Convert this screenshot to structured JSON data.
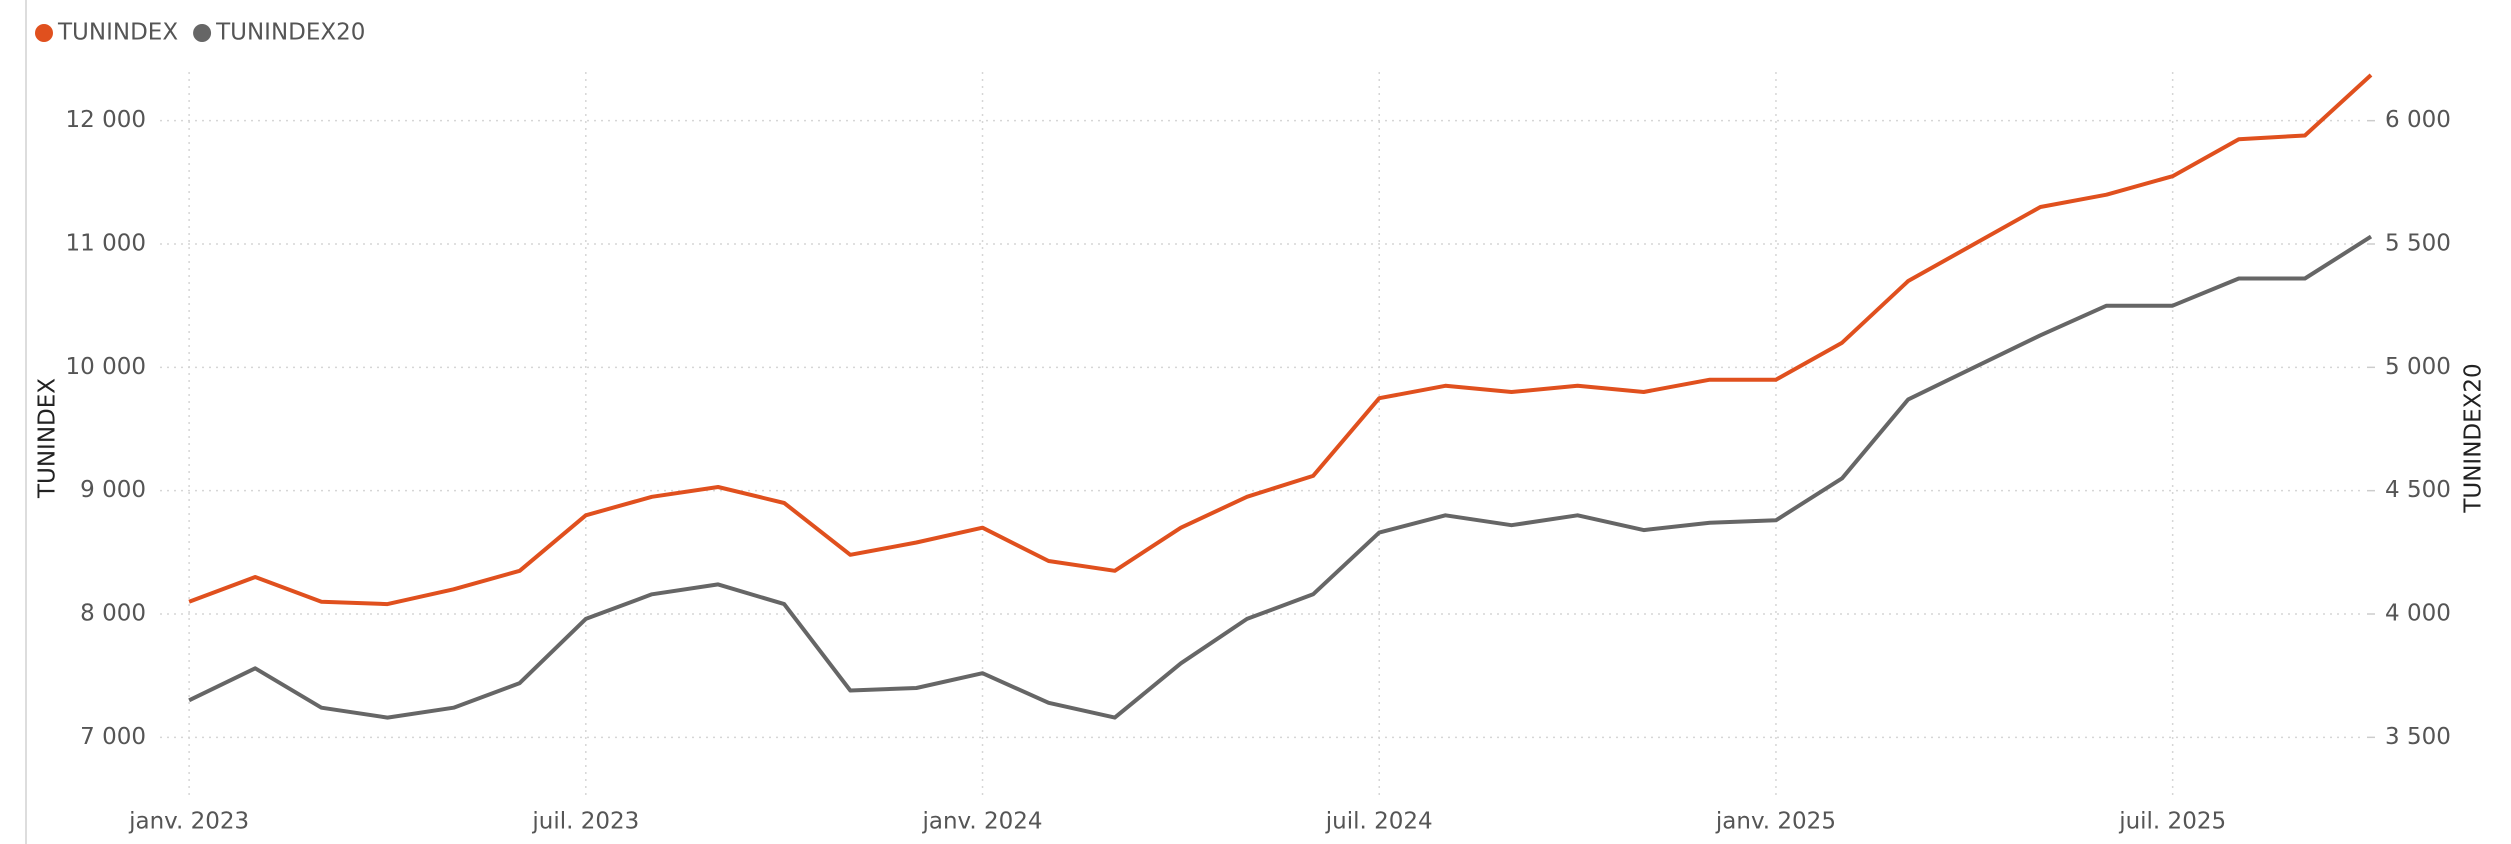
{
  "chart_data": {
    "type": "line",
    "x": [
      "2023-01",
      "2023-02",
      "2023-03",
      "2023-04",
      "2023-05",
      "2023-06",
      "2023-07",
      "2023-08",
      "2023-09",
      "2023-10",
      "2023-11",
      "2023-12",
      "2024-01",
      "2024-02",
      "2024-03",
      "2024-04",
      "2024-05",
      "2024-06",
      "2024-07",
      "2024-08",
      "2024-09",
      "2024-10",
      "2024-11",
      "2024-12",
      "2025-01",
      "2025-02",
      "2025-03",
      "2025-04",
      "2025-05",
      "2025-06",
      "2025-07",
      "2025-08",
      "2025-09",
      "2025-10"
    ],
    "series": [
      {
        "name": "TUNINDEX",
        "color": "#e0501e",
        "axis": "y",
        "values": [
          8100,
          8300,
          8100,
          8080,
          8200,
          8350,
          8800,
          8950,
          9030,
          8900,
          8480,
          8580,
          8700,
          8430,
          8350,
          8700,
          8950,
          9120,
          9750,
          9850,
          9800,
          9850,
          9800,
          9900,
          9900,
          10200,
          10700,
          11000,
          11300,
          11400,
          11550,
          11850,
          11880,
          12370
        ]
      },
      {
        "name": "TUNINDEX20",
        "color": "#666666",
        "axis": "y2",
        "values": [
          3650,
          3780,
          3620,
          3580,
          3620,
          3720,
          3980,
          4080,
          4120,
          4040,
          3690,
          3700,
          3760,
          3640,
          3580,
          3800,
          3980,
          4080,
          4330,
          4400,
          4360,
          4400,
          4340,
          4370,
          4380,
          4550,
          4870,
          5000,
          5130,
          5250,
          5250,
          5360,
          5360,
          5530
        ]
      }
    ],
    "xlim": [
      "2022-12",
      "2025-10"
    ],
    "xticks": [
      {
        "value": "2023-01",
        "label": "janv. 2023"
      },
      {
        "value": "2023-07",
        "label": "juil. 2023"
      },
      {
        "value": "2024-01",
        "label": "janv. 2024"
      },
      {
        "value": "2024-07",
        "label": "juil. 2024"
      },
      {
        "value": "2025-01",
        "label": "janv. 2025"
      },
      {
        "value": "2025-07",
        "label": "juil. 2025"
      }
    ],
    "ylabel": "TUNINDEX",
    "ylim": [
      6500,
      12500
    ],
    "yticks": [
      {
        "value": 7000,
        "label": "7 000"
      },
      {
        "value": 8000,
        "label": "8 000"
      },
      {
        "value": 9000,
        "label": "9 000"
      },
      {
        "value": 10000,
        "label": "10 000"
      },
      {
        "value": 11000,
        "label": "11 000"
      },
      {
        "value": 12000,
        "label": "12 000"
      }
    ],
    "y2label": "TUNINDEX20",
    "y2lim": [
      3250,
      6250
    ],
    "y2ticks": [
      {
        "value": 3500,
        "label": "3 500"
      },
      {
        "value": 4000,
        "label": "4 000"
      },
      {
        "value": 4500,
        "label": "4 500"
      },
      {
        "value": 5000,
        "label": "5 000"
      },
      {
        "value": 5500,
        "label": "5 500"
      },
      {
        "value": 6000,
        "label": "6 000"
      }
    ],
    "grid": true,
    "legend": "top-left"
  }
}
